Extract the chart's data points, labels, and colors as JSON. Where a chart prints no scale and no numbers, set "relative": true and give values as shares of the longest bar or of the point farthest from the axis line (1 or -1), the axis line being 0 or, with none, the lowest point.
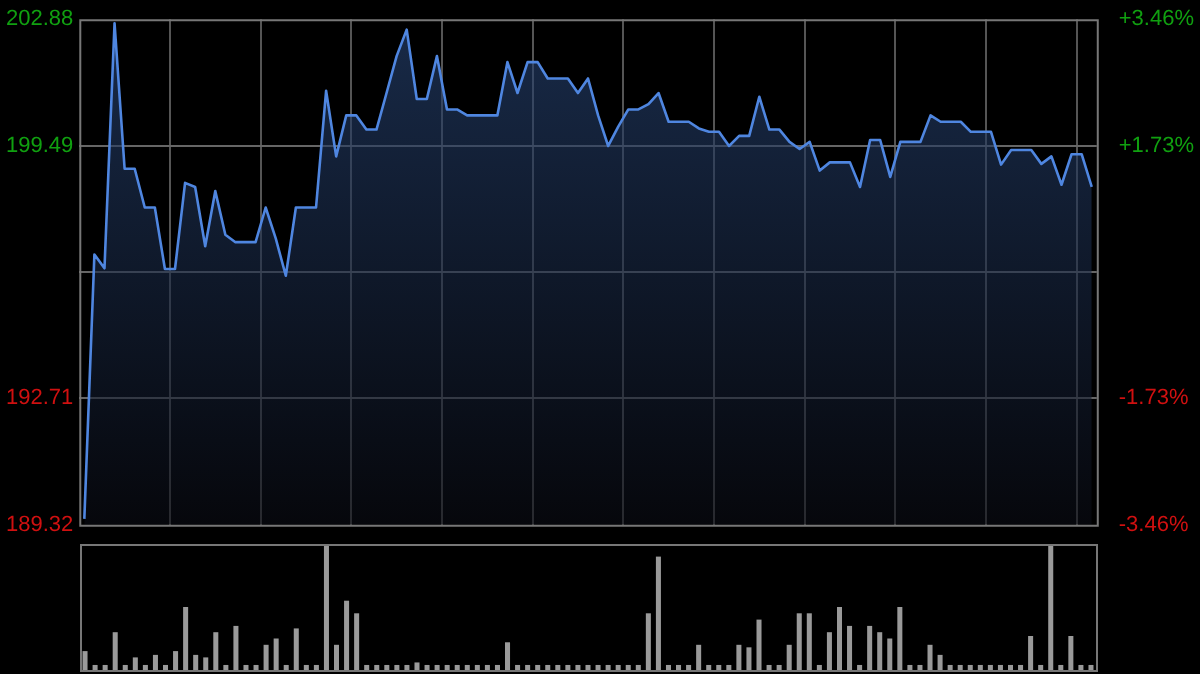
{
  "chart_data": [
    {
      "type": "area",
      "categories": [
        null,
        null,
        null,
        null,
        null,
        null,
        null,
        null,
        null,
        null,
        null,
        null,
        null,
        null,
        null,
        null,
        null,
        null,
        null,
        null,
        null,
        null,
        null,
        null,
        null,
        null,
        null,
        null,
        null,
        null,
        null,
        null,
        null,
        null,
        null,
        null,
        null,
        null,
        null,
        null,
        null,
        null,
        null,
        null,
        null,
        null,
        null,
        null,
        null,
        null,
        null,
        null,
        null,
        null,
        null,
        null,
        null,
        null,
        null,
        null,
        null,
        null,
        null,
        null,
        null,
        null,
        null,
        null,
        null,
        null,
        null,
        null,
        null,
        null,
        null,
        null,
        null,
        null,
        null,
        null,
        null,
        null,
        null,
        null,
        null,
        null,
        null,
        null,
        null,
        null,
        null,
        null,
        null,
        null,
        null,
        null,
        null,
        null,
        null,
        null,
        null
      ],
      "series": [
        {
          "color": "#4f86e0",
          "values": [
            189.48,
            196.57,
            196.2,
            202.77,
            198.87,
            198.87,
            197.83,
            197.83,
            196.18,
            196.18,
            198.49,
            198.38,
            196.79,
            198.27,
            197.1,
            196.9,
            196.9,
            196.9,
            197.83,
            197.0,
            196.0,
            197.83,
            197.83,
            197.83,
            200.96,
            199.2,
            200.3,
            200.3,
            199.92,
            199.92,
            200.9,
            201.89,
            202.6,
            200.74,
            200.74,
            201.89,
            200.46,
            200.46,
            200.3,
            200.3,
            200.3,
            200.3,
            201.73,
            200.9,
            201.73,
            201.73,
            201.29,
            201.29,
            201.29,
            200.9,
            201.29,
            200.3,
            199.48,
            200.0,
            200.46,
            200.46,
            200.6,
            200.9,
            200.13,
            200.13,
            200.13,
            199.95,
            199.86,
            199.86,
            199.48,
            199.75,
            199.75,
            200.8,
            199.92,
            199.92,
            199.59,
            199.4,
            199.59,
            198.82,
            199.04,
            199.04,
            199.04,
            198.38,
            199.64,
            199.64,
            198.65,
            199.59,
            199.59,
            199.59,
            200.3,
            200.13,
            200.13,
            200.13,
            199.86,
            199.86,
            199.86,
            198.98,
            199.37,
            199.37,
            199.37,
            199.0,
            199.2,
            198.44,
            199.26,
            199.26,
            198.38
          ]
        }
      ],
      "ylim": [
        189.32,
        202.88
      ],
      "yticks": [
        189.32,
        192.71,
        {
          "value": 196.1,
          "label": null
        },
        199.49,
        202.88
      ],
      "y2lim": [
        -3.46,
        3.46
      ],
      "y2ticks": [
        {
          "value": -3.46,
          "label": "-3.46%"
        },
        {
          "value": -1.73,
          "label": "-1.73%"
        },
        {
          "value": 1.73,
          "label": "+1.73%"
        },
        {
          "value": 3.46,
          "label": "+3.46%"
        }
      ],
      "grid": true,
      "marker": "none",
      "legend": false
    },
    {
      "type": "bar",
      "relative": true,
      "categories": [
        null,
        null,
        null,
        null,
        null,
        null,
        null,
        null,
        null,
        null,
        null,
        null,
        null,
        null,
        null,
        null,
        null,
        null,
        null,
        null,
        null,
        null,
        null,
        null,
        null,
        null,
        null,
        null,
        null,
        null,
        null,
        null,
        null,
        null,
        null,
        null,
        null,
        null,
        null,
        null,
        null,
        null,
        null,
        null,
        null,
        null,
        null,
        null,
        null,
        null,
        null,
        null,
        null,
        null,
        null,
        null,
        null,
        null,
        null,
        null,
        null,
        null,
        null,
        null,
        null,
        null,
        null,
        null,
        null,
        null,
        null,
        null,
        null,
        null,
        null,
        null,
        null,
        null,
        null,
        null,
        null,
        null,
        null,
        null,
        null,
        null,
        null,
        null,
        null,
        null,
        null,
        null,
        null,
        null,
        null,
        null,
        null,
        null,
        null,
        null,
        null
      ],
      "series": [
        {
          "color": "#9a9a9a",
          "values": [
            0.15,
            0.04,
            0.04,
            0.3,
            0.04,
            0.1,
            0.04,
            0.12,
            0.04,
            0.15,
            0.5,
            0.12,
            0.1,
            0.3,
            0.04,
            0.35,
            0.04,
            0.04,
            0.2,
            0.25,
            0.04,
            0.33,
            0.04,
            0.04,
            1,
            0.2,
            0.55,
            0.45,
            0.04,
            0.04,
            0.04,
            0.04,
            0.04,
            0.06,
            0.04,
            0.04,
            0.04,
            0.04,
            0.04,
            0.04,
            0.04,
            0.04,
            0.22,
            0.04,
            0.04,
            0.04,
            0.04,
            0.04,
            0.04,
            0.04,
            0.04,
            0.04,
            0.04,
            0.04,
            0.04,
            0.04,
            0.45,
            0.9,
            0.04,
            0.04,
            0.04,
            0.2,
            0.04,
            0.04,
            0.04,
            0.2,
            0.18,
            0.4,
            0.04,
            0.04,
            0.2,
            0.45,
            0.45,
            0.04,
            0.3,
            0.5,
            0.35,
            0.04,
            0.35,
            0.3,
            0.25,
            0.5,
            0.04,
            0.04,
            0.2,
            0.12,
            0.04,
            0.04,
            0.04,
            0.04,
            0.04,
            0.04,
            0.04,
            0.04,
            0.27,
            0.04,
            1,
            0.04,
            0.27,
            0.04,
            0.04
          ]
        }
      ],
      "grid": false,
      "legend": false
    }
  ]
}
